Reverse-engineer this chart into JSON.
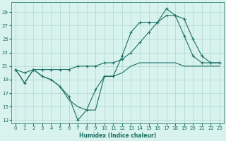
{
  "xlabel": "Humidex (Indice chaleur)",
  "bg_color": "#d8f2ee",
  "grid_color": "#aed8d0",
  "line_color": "#1a6e64",
  "xlim": [
    -0.5,
    23.5
  ],
  "ylim": [
    12.5,
    30.5
  ],
  "yticks": [
    13,
    15,
    17,
    19,
    21,
    23,
    25,
    27,
    29
  ],
  "xticks": [
    0,
    1,
    2,
    3,
    4,
    5,
    6,
    7,
    8,
    9,
    10,
    11,
    12,
    13,
    14,
    15,
    16,
    17,
    18,
    19,
    20,
    21,
    22,
    23
  ],
  "line1_x": [
    0,
    1,
    2,
    3,
    4,
    5,
    6,
    7,
    8,
    9,
    10,
    11,
    12,
    13,
    14,
    15,
    16,
    17,
    18,
    19,
    20,
    21,
    22,
    23
  ],
  "line1_y": [
    20.5,
    18.5,
    20.5,
    19.5,
    19.0,
    18.0,
    16.5,
    13.0,
    14.5,
    17.5,
    19.5,
    19.5,
    22.5,
    26.0,
    27.5,
    27.5,
    27.5,
    29.5,
    28.5,
    25.5,
    22.5,
    21.5,
    21.5,
    21.5
  ],
  "line2_x": [
    0,
    1,
    2,
    3,
    4,
    5,
    6,
    7,
    8,
    9,
    10,
    11,
    12,
    13,
    14,
    15,
    16,
    17,
    18,
    19,
    20,
    21,
    22,
    23
  ],
  "line2_y": [
    20.5,
    20.0,
    20.5,
    20.5,
    20.5,
    20.5,
    20.5,
    21.0,
    21.0,
    21.0,
    21.5,
    21.5,
    22.0,
    23.0,
    24.5,
    26.0,
    27.5,
    28.5,
    28.5,
    28.0,
    25.0,
    22.5,
    21.5,
    21.5
  ],
  "line3_x": [
    0,
    1,
    2,
    3,
    4,
    5,
    6,
    7,
    8,
    9,
    10,
    11,
    12,
    13,
    14,
    15,
    16,
    17,
    18,
    19,
    20,
    21,
    22,
    23
  ],
  "line3_y": [
    20.5,
    18.5,
    20.5,
    19.5,
    19.0,
    18.0,
    16.0,
    15.0,
    14.5,
    14.5,
    19.5,
    19.5,
    20.0,
    21.0,
    21.5,
    21.5,
    21.5,
    21.5,
    21.5,
    21.0,
    21.0,
    21.0,
    21.0,
    21.0
  ]
}
